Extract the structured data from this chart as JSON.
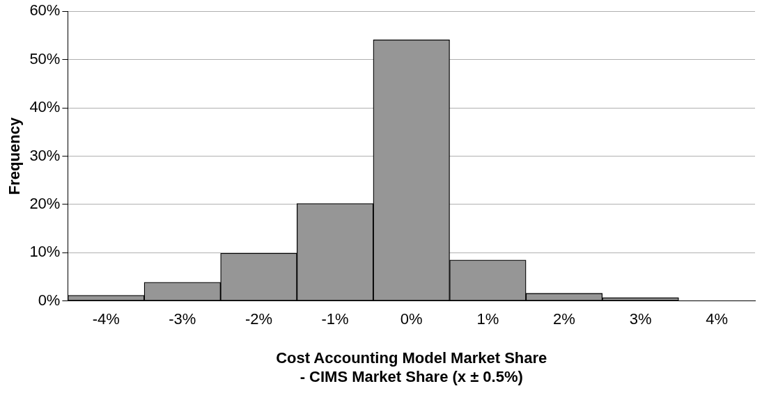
{
  "chart_data": {
    "type": "bar",
    "ylabel": "Frequency",
    "xlabel": "Cost Accounting Model Market Share\n- CIMS Market Share (x ± 0.5%)",
    "categories": [
      "-4%",
      "-3%",
      "-2%",
      "-1%",
      "0%",
      "1%",
      "2%",
      "3%",
      "4%"
    ],
    "values": [
      1.2,
      3.9,
      9.9,
      20.2,
      54.1,
      8.5,
      1.6,
      0.7,
      0
    ],
    "color": "#969696",
    "ylim": [
      0,
      60
    ],
    "yticks": [
      {
        "value": 0,
        "label": "0%"
      },
      {
        "value": 10,
        "label": "10%"
      },
      {
        "value": 20,
        "label": "20%"
      },
      {
        "value": 30,
        "label": "30%"
      },
      {
        "value": 40,
        "label": "40%"
      },
      {
        "value": 50,
        "label": "50%"
      },
      {
        "value": 60,
        "label": "60%"
      }
    ],
    "grid": "y",
    "legend": false
  }
}
